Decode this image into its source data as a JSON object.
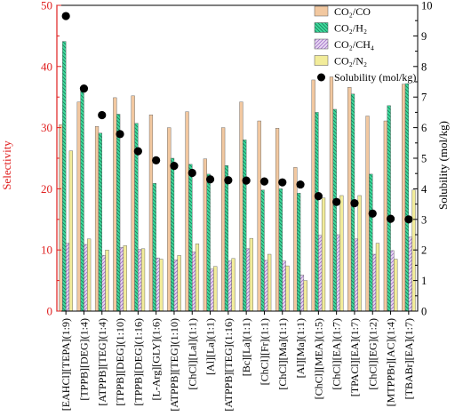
{
  "chart_data": {
    "type": "bar",
    "ylabel": "Selectivity",
    "y2label": "Solubility (mol/kg)",
    "ylim": [
      0,
      50
    ],
    "y2lim": [
      0,
      10
    ],
    "yticks": [
      0,
      10,
      20,
      30,
      40,
      50
    ],
    "y2ticks": [
      0,
      1,
      2,
      3,
      4,
      5,
      6,
      7,
      8,
      9,
      10
    ],
    "grid": false,
    "legend_position": "top-right",
    "categories": [
      "[EAHCl][TEPA](1:9)",
      "[TPPB][DEG](1:4)",
      "[ATPPB][TEG](1:4)",
      "[TPPB][DEG](1:10)",
      "[TPPB][DEG](1:16)",
      "[L-Arg][GLY](1:6)",
      "[ATPPB][TEG](1:10)",
      "[ChCl][Lal](1:1)",
      "[Al][La](1:1)",
      "[ATPPB][TEG](1:16)",
      "[Bc][La](1:1)",
      "[ChCl][Fr](1:1)",
      "[ChCl][Ma](1:1)",
      "[Al][Ma](1:1)",
      "[ChCl][MEA](1:5)",
      "[ChCl][EA](1:7)",
      "[TPACl][EA](1:7)",
      "[ChCl][EG](1:2)",
      "[MTPPBr][AC](1:4)",
      "[TBABr][EA](1:7)"
    ],
    "series": [
      {
        "name": "CO₂/CO",
        "color": "#f2c8a0",
        "pattern": "solid",
        "values": [
          30.5,
          34.2,
          30.2,
          34.9,
          35.2,
          32.1,
          30.0,
          32.6,
          24.9,
          30.0,
          34.2,
          31.1,
          29.9,
          23.5,
          37.8,
          38.3,
          36.6,
          31.9,
          31.1,
          37.1
        ]
      },
      {
        "name": "CO₂/H₂",
        "color": "#3ddc9c",
        "pattern": "backslash",
        "values": [
          44.1,
          36.5,
          29.1,
          32.2,
          30.7,
          20.9,
          25.0,
          24.0,
          22.4,
          23.8,
          28.0,
          19.8,
          20.0,
          19.3,
          32.5,
          33.0,
          35.5,
          22.4,
          33.6,
          37.2
        ]
      },
      {
        "name": "CO₂/CH₄",
        "color": "#c8a0e0",
        "pattern": "slash",
        "values": [
          11.1,
          10.9,
          9.1,
          10.4,
          10.1,
          8.7,
          8.4,
          9.7,
          6.9,
          8.2,
          10.2,
          8.3,
          8.2,
          5.9,
          12.4,
          12.5,
          11.8,
          9.3,
          9.9,
          12.1
        ]
      },
      {
        "name": "CO₂/N₂",
        "color": "#f2ec9a",
        "pattern": "solid",
        "values": [
          26.2,
          11.8,
          10.0,
          10.7,
          10.2,
          8.5,
          9.1,
          11.0,
          7.3,
          8.6,
          11.9,
          9.3,
          7.4,
          5.0,
          18.5,
          18.9,
          18.9,
          11.1,
          8.5,
          19.8
        ]
      }
    ],
    "solubility": {
      "name": "Solubility (mol/kg)",
      "axis": "right",
      "values": [
        9.65,
        7.28,
        6.41,
        5.79,
        5.23,
        4.93,
        4.75,
        4.52,
        4.31,
        4.28,
        4.27,
        4.24,
        4.21,
        4.14,
        3.76,
        3.57,
        3.53,
        3.19,
        3.02,
        3.0
      ]
    }
  },
  "colors": {
    "left_axis": "#e02020",
    "marker": "#000000",
    "frame": "#000000"
  }
}
